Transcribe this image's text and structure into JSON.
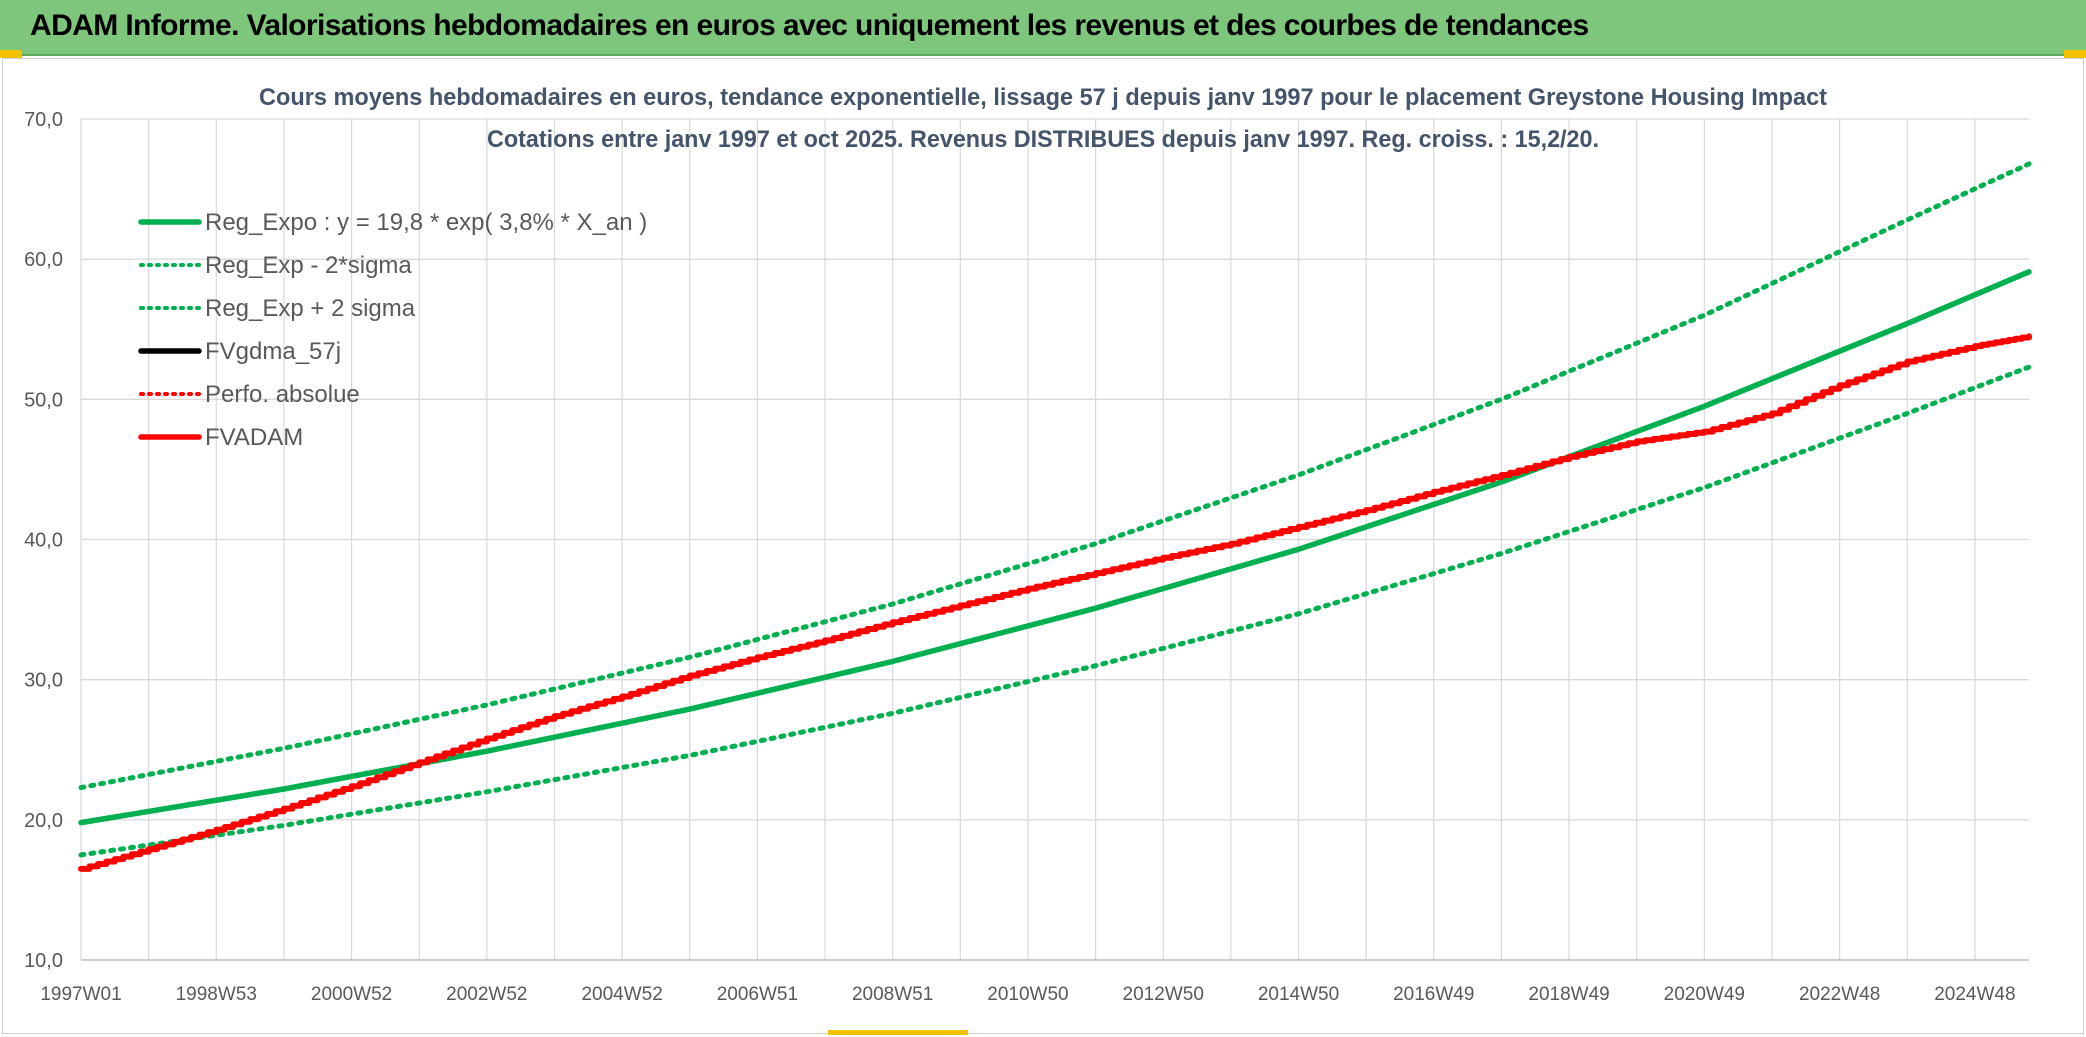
{
  "banner": {
    "title": "ADAM Informe. Valorisations hebdomadaires en euros avec uniquement les revenus et des courbes de tendances"
  },
  "colors": {
    "banner_bg": "#7dc67b",
    "green": "#00b050",
    "red": "#ff0000",
    "black": "#000000",
    "title_text": "#44546a",
    "axis_text": "#595959",
    "grid": "#d9d9d9"
  },
  "chart_data": {
    "type": "line",
    "title": "Cours moyens hebdomadaires en euros, tendance exponentielle, lissage 57 j depuis janv 1997 pour le placement Greystone Housing Impact",
    "subtitle": "Cotations entre janv 1997 et oct 2025. Revenus DISTRIBUES depuis janv 1997. Reg. croiss. : 15,2/20.",
    "xlabel": "",
    "ylabel": "",
    "ylim": [
      10,
      70
    ],
    "y_ticks": [
      "10,0",
      "20,0",
      "30,0",
      "40,0",
      "50,0",
      "60,0",
      "70,0"
    ],
    "x_tick_labels": [
      "1997W01",
      "1998W53",
      "2000W52",
      "2002W52",
      "2004W52",
      "2006W51",
      "2008W51",
      "2010W50",
      "2012W50",
      "2014W50",
      "2016W49",
      "2018W49",
      "2020W49",
      "2022W48",
      "2024W48"
    ],
    "x_range_years": [
      1997.0,
      2025.8
    ],
    "grid": true,
    "legend_position": "top-left",
    "legend": [
      {
        "name": "Reg_Expo : y = 19,8 * exp( 3,8% *  X_an )",
        "color": "#00b050",
        "style": "solid"
      },
      {
        "name": "Reg_Exp - 2*sigma",
        "color": "#00b050",
        "style": "dotted"
      },
      {
        "name": "Reg_Exp + 2 sigma",
        "color": "#00b050",
        "style": "dotted"
      },
      {
        "name": "FVgdma_57j",
        "color": "#000000",
        "style": "solid"
      },
      {
        "name": "Perfo. absolue",
        "color": "#ff0000",
        "style": "dotted"
      },
      {
        "name": "FVADAM",
        "color": "#ff0000",
        "style": "solid"
      }
    ],
    "series": [
      {
        "name": "Reg_Expo : y = 19,8 * exp( 3,8% *  X_an )",
        "x": [
          1997,
          2000,
          2003,
          2006,
          2009,
          2012,
          2015,
          2018,
          2021,
          2024,
          2025.8
        ],
        "values": [
          19.8,
          22.2,
          24.9,
          27.9,
          31.3,
          35.1,
          39.3,
          44.1,
          49.5,
          55.4,
          59.1
        ]
      },
      {
        "name": "Reg_Exp - 2*sigma",
        "x": [
          1997,
          2000,
          2003,
          2006,
          2009,
          2012,
          2015,
          2018,
          2021,
          2024,
          2025.8
        ],
        "values": [
          17.5,
          19.6,
          22.0,
          24.6,
          27.6,
          31.0,
          34.7,
          39.0,
          43.7,
          49.0,
          52.3
        ]
      },
      {
        "name": "Reg_Exp + 2 sigma",
        "x": [
          1997,
          2000,
          2003,
          2006,
          2009,
          2012,
          2015,
          2018,
          2021,
          2024,
          2025.8
        ],
        "values": [
          22.3,
          25.1,
          28.2,
          31.6,
          35.4,
          39.7,
          44.6,
          50.0,
          56.0,
          62.8,
          66.8
        ]
      },
      {
        "name": "FVADAM",
        "x": [
          1997,
          1998,
          1999,
          2000,
          2001,
          2002,
          2003,
          2004,
          2005,
          2006,
          2007,
          2008,
          2009,
          2010,
          2011,
          2012,
          2013,
          2014,
          2015,
          2016,
          2017,
          2018,
          2019,
          2020,
          2021,
          2022,
          2023,
          2024,
          2025,
          2025.8
        ],
        "values": [
          16.5,
          17.9,
          19.3,
          20.8,
          22.4,
          24.1,
          25.8,
          27.4,
          28.8,
          30.3,
          31.6,
          32.8,
          34.1,
          35.3,
          36.5,
          37.6,
          38.7,
          39.7,
          40.9,
          42.1,
          43.4,
          44.6,
          45.9,
          47.0,
          47.7,
          49.0,
          51.0,
          52.7,
          53.8,
          54.5
        ]
      }
    ]
  }
}
